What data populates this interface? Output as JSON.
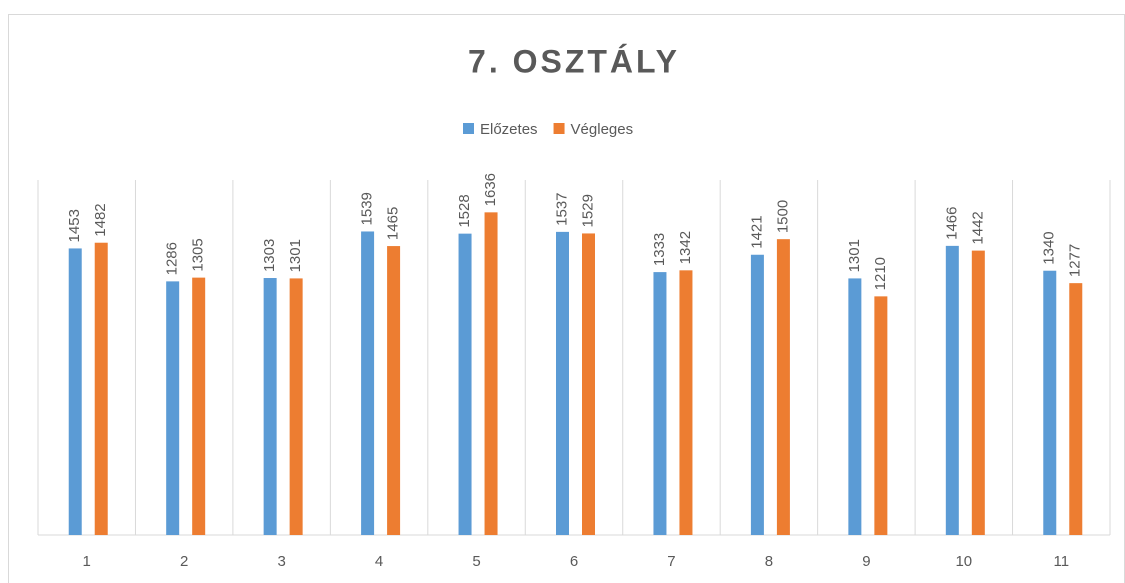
{
  "chart_data": {
    "type": "bar",
    "title": "7. OSZTÁLY",
    "categories": [
      "1",
      "2",
      "3",
      "4",
      "5",
      "6",
      "7",
      "8",
      "9",
      "10",
      "11"
    ],
    "series": [
      {
        "name": "Előzetes",
        "color": "#5b9bd5",
        "values": [
          1453,
          1286,
          1303,
          1539,
          1528,
          1537,
          1333,
          1421,
          1301,
          1466,
          1340
        ]
      },
      {
        "name": "Végleges",
        "color": "#ed7d31",
        "values": [
          1482,
          1305,
          1301,
          1465,
          1636,
          1529,
          1342,
          1500,
          1210,
          1442,
          1277
        ]
      }
    ],
    "ylim": [
      0,
      1800
    ],
    "legend": "top"
  }
}
